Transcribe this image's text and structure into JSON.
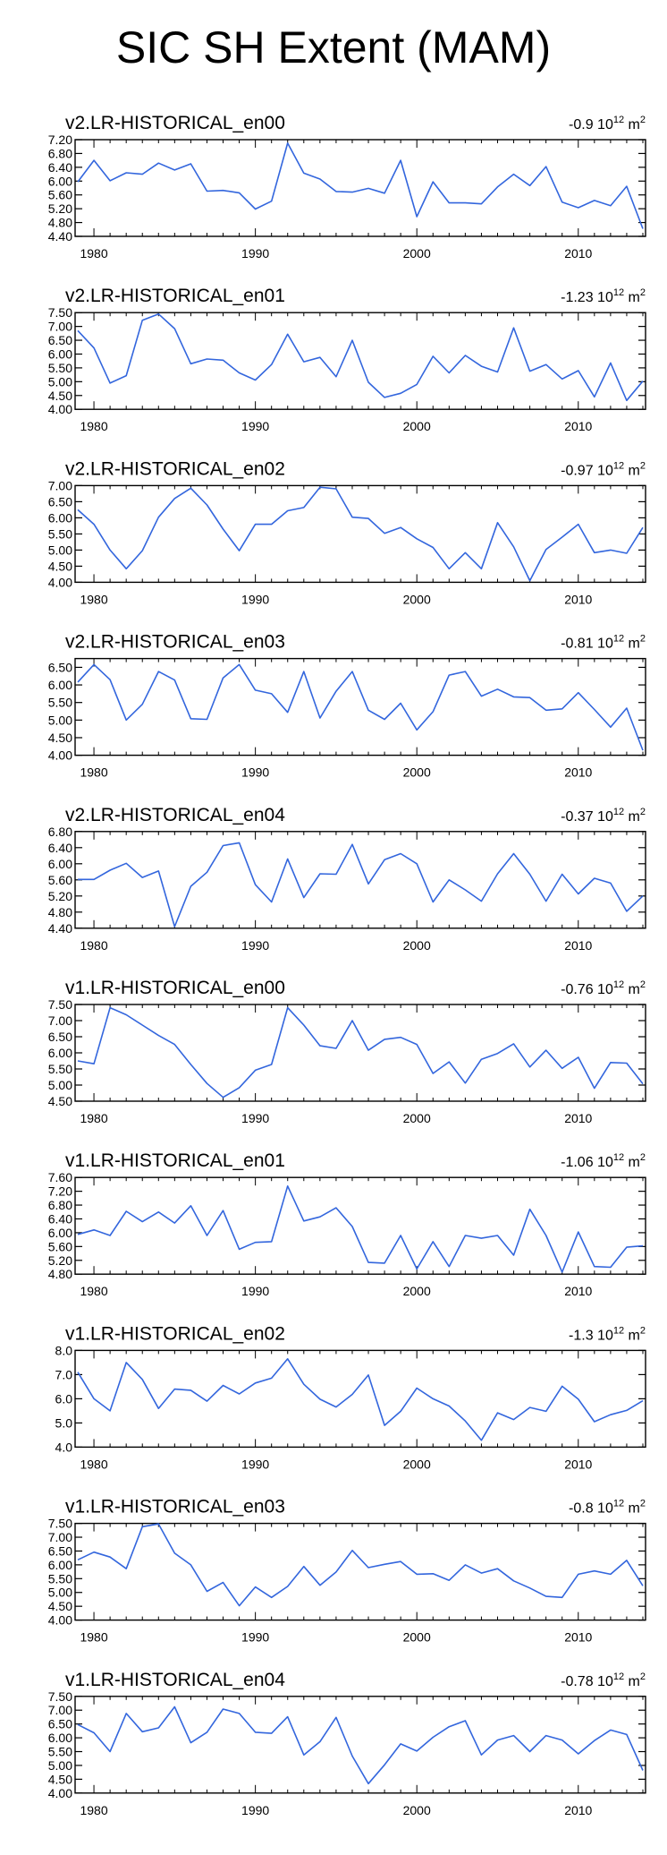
{
  "page_title": "SIC SH Extent (MAM)",
  "unit_base": "10",
  "unit_exp": "12",
  "unit_suffix": "m",
  "unit_suffix_exp": "2",
  "chart_data": [
    {
      "type": "line",
      "title": "v2.LR-HISTORICAL_en00",
      "trend": "-0.9",
      "xlabel": "",
      "ylabel": "",
      "x_range": [
        1979,
        2014
      ],
      "x_ticks": [
        1980,
        1990,
        2000,
        2010
      ],
      "ylim": [
        4.4,
        7.2
      ],
      "y_tick_labels": [
        "7.20",
        "6.80",
        "6.40",
        "6.00",
        "5.60",
        "5.20",
        "4.80",
        "4.40"
      ],
      "line_color": "#3366dd",
      "x": [
        1979,
        1980,
        1981,
        1982,
        1983,
        1984,
        1985,
        1986,
        1987,
        1988,
        1989,
        1990,
        1991,
        1992,
        1993,
        1994,
        1995,
        1996,
        1997,
        1998,
        1999,
        2000,
        2001,
        2002,
        2003,
        2004,
        2005,
        2006,
        2007,
        2008,
        2009,
        2010,
        2011,
        2012,
        2013,
        2014
      ],
      "values": [
        5.98,
        6.6,
        6.01,
        6.24,
        6.2,
        6.52,
        6.32,
        6.5,
        5.71,
        5.73,
        5.66,
        5.19,
        5.42,
        7.1,
        6.23,
        6.06,
        5.7,
        5.68,
        5.79,
        5.65,
        6.6,
        4.97,
        5.98,
        5.37,
        5.37,
        5.34,
        5.83,
        6.2,
        5.87,
        6.42,
        5.39,
        5.23,
        5.44,
        5.29,
        5.85,
        4.62
      ]
    },
    {
      "type": "line",
      "title": "v2.LR-HISTORICAL_en01",
      "trend": "-1.23",
      "xlabel": "",
      "ylabel": "",
      "x_range": [
        1979,
        2014
      ],
      "x_ticks": [
        1980,
        1990,
        2000,
        2010
      ],
      "ylim": [
        4.0,
        7.5
      ],
      "y_tick_labels": [
        "7.50",
        "7.00",
        "6.50",
        "6.00",
        "5.50",
        "5.00",
        "4.50",
        "4.00"
      ],
      "line_color": "#3366dd",
      "x": [
        1979,
        1980,
        1981,
        1982,
        1983,
        1984,
        1985,
        1986,
        1987,
        1988,
        1989,
        1990,
        1991,
        1992,
        1993,
        1994,
        1995,
        1996,
        1997,
        1998,
        1999,
        2000,
        2001,
        2002,
        2003,
        2004,
        2005,
        2006,
        2007,
        2008,
        2009,
        2010,
        2011,
        2012,
        2013,
        2014
      ],
      "values": [
        6.85,
        6.22,
        4.95,
        5.22,
        7.22,
        7.45,
        6.92,
        5.65,
        5.82,
        5.78,
        5.32,
        5.06,
        5.62,
        6.72,
        5.72,
        5.88,
        5.18,
        6.5,
        4.98,
        4.43,
        4.58,
        4.9,
        5.92,
        5.32,
        5.95,
        5.56,
        5.35,
        6.95,
        5.38,
        5.62,
        5.1,
        5.4,
        4.45,
        5.68,
        4.32,
        5.02
      ]
    },
    {
      "type": "line",
      "title": "v2.LR-HISTORICAL_en02",
      "trend": "-0.97",
      "xlabel": "",
      "ylabel": "",
      "x_range": [
        1979,
        2014
      ],
      "x_ticks": [
        1980,
        1990,
        2000,
        2010
      ],
      "ylim": [
        4.0,
        7.0
      ],
      "y_tick_labels": [
        "7.00",
        "6.50",
        "6.00",
        "5.50",
        "5.00",
        "4.50",
        "4.00"
      ],
      "line_color": "#3366dd",
      "x": [
        1979,
        1980,
        1981,
        1982,
        1983,
        1984,
        1985,
        1986,
        1987,
        1988,
        1989,
        1990,
        1991,
        1992,
        1993,
        1994,
        1995,
        1996,
        1997,
        1998,
        1999,
        2000,
        2001,
        2002,
        2003,
        2004,
        2005,
        2006,
        2007,
        2008,
        2009,
        2010,
        2011,
        2012,
        2013,
        2014
      ],
      "values": [
        6.25,
        5.8,
        5.0,
        4.42,
        4.98,
        6.02,
        6.6,
        6.92,
        6.4,
        5.65,
        4.98,
        5.8,
        5.8,
        6.22,
        6.32,
        6.95,
        6.9,
        6.02,
        5.98,
        5.52,
        5.7,
        5.35,
        5.08,
        4.42,
        4.92,
        4.42,
        5.85,
        5.1,
        4.05,
        5.02,
        5.4,
        5.8,
        4.92,
        5.0,
        4.9,
        5.7
      ]
    },
    {
      "type": "line",
      "title": "v2.LR-HISTORICAL_en03",
      "trend": "-0.81",
      "xlabel": "",
      "ylabel": "",
      "x_range": [
        1979,
        2014
      ],
      "x_ticks": [
        1980,
        1990,
        2000,
        2010
      ],
      "ylim": [
        4.0,
        6.75
      ],
      "y_tick_labels": [
        "6.50",
        "6.00",
        "5.50",
        "5.00",
        "4.50",
        "4.00"
      ],
      "line_color": "#3366dd",
      "x": [
        1979,
        1980,
        1981,
        1982,
        1983,
        1984,
        1985,
        1986,
        1987,
        1988,
        1989,
        1990,
        1991,
        1992,
        1993,
        1994,
        1995,
        1996,
        1997,
        1998,
        1999,
        2000,
        2001,
        2002,
        2003,
        2004,
        2005,
        2006,
        2007,
        2008,
        2009,
        2010,
        2011,
        2012,
        2013,
        2014
      ],
      "values": [
        6.08,
        6.58,
        6.15,
        5.0,
        5.45,
        6.38,
        6.14,
        5.04,
        5.02,
        6.2,
        6.58,
        5.85,
        5.75,
        5.22,
        6.38,
        5.06,
        5.82,
        6.38,
        5.28,
        5.02,
        5.48,
        4.72,
        5.24,
        6.28,
        6.38,
        5.68,
        5.88,
        5.66,
        5.64,
        5.28,
        5.32,
        5.78,
        5.3,
        4.8,
        5.34,
        4.14
      ]
    },
    {
      "type": "line",
      "title": "v2.LR-HISTORICAL_en04",
      "trend": "-0.37",
      "xlabel": "",
      "ylabel": "",
      "x_range": [
        1979,
        2014
      ],
      "x_ticks": [
        1980,
        1990,
        2000,
        2010
      ],
      "ylim": [
        4.4,
        6.8
      ],
      "y_tick_labels": [
        "6.80",
        "6.40",
        "6.00",
        "5.60",
        "5.20",
        "4.80",
        "4.40"
      ],
      "line_color": "#3366dd",
      "x": [
        1979,
        1980,
        1981,
        1982,
        1983,
        1984,
        1985,
        1986,
        1987,
        1988,
        1989,
        1990,
        1991,
        1992,
        1993,
        1994,
        1995,
        1996,
        1997,
        1998,
        1999,
        2000,
        2001,
        2002,
        2003,
        2004,
        2005,
        2006,
        2007,
        2008,
        2009,
        2010,
        2011,
        2012,
        2013,
        2014
      ],
      "values": [
        5.61,
        5.61,
        5.84,
        6.01,
        5.66,
        5.82,
        4.44,
        5.44,
        5.79,
        6.45,
        6.52,
        5.48,
        5.05,
        6.12,
        5.16,
        5.75,
        5.74,
        6.48,
        5.5,
        6.1,
        6.25,
        6.0,
        5.05,
        5.6,
        5.35,
        5.07,
        5.75,
        6.25,
        5.74,
        5.07,
        5.74,
        5.25,
        5.64,
        5.52,
        4.82,
        5.2
      ]
    },
    {
      "type": "line",
      "title": "v1.LR-HISTORICAL_en00",
      "trend": "-0.76",
      "xlabel": "",
      "ylabel": "",
      "x_range": [
        1979,
        2014
      ],
      "x_ticks": [
        1980,
        1990,
        2000,
        2010
      ],
      "ylim": [
        4.5,
        7.5
      ],
      "y_tick_labels": [
        "7.50",
        "7.00",
        "6.50",
        "6.00",
        "5.50",
        "5.00",
        "4.50"
      ],
      "line_color": "#3366dd",
      "x": [
        1979,
        1980,
        1981,
        1982,
        1983,
        1984,
        1985,
        1986,
        1987,
        1988,
        1989,
        1990,
        1991,
        1992,
        1993,
        1994,
        1995,
        1996,
        1997,
        1998,
        1999,
        2000,
        2001,
        2002,
        2003,
        2004,
        2005,
        2006,
        2007,
        2008,
        2009,
        2010,
        2011,
        2012,
        2013,
        2014
      ],
      "values": [
        5.75,
        5.66,
        7.4,
        7.18,
        6.86,
        6.54,
        6.26,
        5.64,
        5.05,
        4.62,
        4.92,
        5.46,
        5.64,
        7.4,
        6.86,
        6.22,
        6.14,
        7.0,
        6.08,
        6.42,
        6.48,
        6.26,
        5.36,
        5.72,
        5.06,
        5.8,
        5.98,
        6.28,
        5.56,
        6.08,
        5.52,
        5.86,
        4.9,
        5.7,
        5.68,
        5.04
      ]
    },
    {
      "type": "line",
      "title": "v1.LR-HISTORICAL_en01",
      "trend": "-1.06",
      "xlabel": "",
      "ylabel": "",
      "x_range": [
        1979,
        2014
      ],
      "x_ticks": [
        1980,
        1990,
        2000,
        2010
      ],
      "ylim": [
        4.8,
        7.6
      ],
      "y_tick_labels": [
        "7.60",
        "7.20",
        "6.80",
        "6.40",
        "6.00",
        "5.60",
        "5.20",
        "4.80"
      ],
      "line_color": "#3366dd",
      "x": [
        1979,
        1980,
        1981,
        1982,
        1983,
        1984,
        1985,
        1986,
        1987,
        1988,
        1989,
        1990,
        1991,
        1992,
        1993,
        1994,
        1995,
        1996,
        1997,
        1998,
        1999,
        2000,
        2001,
        2002,
        2003,
        2004,
        2005,
        2006,
        2007,
        2008,
        2009,
        2010,
        2011,
        2012,
        2013,
        2014
      ],
      "values": [
        5.95,
        6.08,
        5.92,
        6.62,
        6.32,
        6.6,
        6.28,
        6.78,
        5.92,
        6.64,
        5.52,
        5.72,
        5.74,
        7.35,
        6.34,
        6.46,
        6.72,
        6.18,
        5.14,
        5.12,
        5.92,
        4.95,
        5.74,
        5.02,
        5.92,
        5.84,
        5.92,
        5.35,
        6.68,
        5.92,
        4.86,
        6.02,
        5.02,
        5.0,
        5.58,
        5.62
      ]
    },
    {
      "type": "line",
      "title": "v1.LR-HISTORICAL_en02",
      "trend": "-1.3",
      "xlabel": "",
      "ylabel": "",
      "x_range": [
        1979,
        2014
      ],
      "x_ticks": [
        1980,
        1990,
        2000,
        2010
      ],
      "ylim": [
        4.0,
        8.0
      ],
      "y_tick_labels": [
        "8.0",
        "7.0",
        "6.0",
        "5.0",
        "4.0"
      ],
      "line_color": "#3366dd",
      "x": [
        1979,
        1980,
        1981,
        1982,
        1983,
        1984,
        1985,
        1986,
        1987,
        1988,
        1989,
        1990,
        1991,
        1992,
        1993,
        1994,
        1995,
        1996,
        1997,
        1998,
        1999,
        2000,
        2001,
        2002,
        2003,
        2004,
        2005,
        2006,
        2007,
        2008,
        2009,
        2010,
        2011,
        2012,
        2013,
        2014
      ],
      "values": [
        7.1,
        6.0,
        5.5,
        7.5,
        6.8,
        5.6,
        6.4,
        6.35,
        5.9,
        6.55,
        6.2,
        6.65,
        6.85,
        7.65,
        6.6,
        5.98,
        5.66,
        6.18,
        6.98,
        4.9,
        5.48,
        6.44,
        6.0,
        5.7,
        5.08,
        4.28,
        5.42,
        5.14,
        5.64,
        5.48,
        6.52,
        5.98,
        5.05,
        5.34,
        5.52,
        5.92
      ]
    },
    {
      "type": "line",
      "title": "v1.LR-HISTORICAL_en03",
      "trend": "-0.8",
      "xlabel": "",
      "ylabel": "",
      "x_range": [
        1979,
        2014
      ],
      "x_ticks": [
        1980,
        1990,
        2000,
        2010
      ],
      "ylim": [
        4.0,
        7.5
      ],
      "y_tick_labels": [
        "7.50",
        "7.00",
        "6.50",
        "6.00",
        "5.50",
        "5.00",
        "4.50",
        "4.00"
      ],
      "line_color": "#3366dd",
      "x": [
        1979,
        1980,
        1981,
        1982,
        1983,
        1984,
        1985,
        1986,
        1987,
        1988,
        1989,
        1990,
        1991,
        1992,
        1993,
        1994,
        1995,
        1996,
        1997,
        1998,
        1999,
        2000,
        2001,
        2002,
        2003,
        2004,
        2005,
        2006,
        2007,
        2008,
        2009,
        2010,
        2011,
        2012,
        2013,
        2014
      ],
      "values": [
        6.18,
        6.46,
        6.28,
        5.86,
        7.38,
        7.48,
        6.42,
        6.0,
        5.04,
        5.36,
        4.52,
        5.2,
        4.82,
        5.22,
        5.94,
        5.26,
        5.74,
        6.52,
        5.9,
        6.02,
        6.12,
        5.66,
        5.68,
        5.44,
        6.0,
        5.7,
        5.86,
        5.42,
        5.16,
        4.86,
        4.82,
        5.66,
        5.78,
        5.66,
        6.16,
        5.24
      ]
    },
    {
      "type": "line",
      "title": "v1.LR-HISTORICAL_en04",
      "trend": "-0.78",
      "xlabel": "",
      "ylabel": "",
      "x_range": [
        1979,
        2014
      ],
      "x_ticks": [
        1980,
        1990,
        2000,
        2010
      ],
      "ylim": [
        4.0,
        7.5
      ],
      "y_tick_labels": [
        "7.50",
        "7.00",
        "6.50",
        "6.00",
        "5.50",
        "5.00",
        "4.50",
        "4.00"
      ],
      "line_color": "#3366dd",
      "x": [
        1979,
        1980,
        1981,
        1982,
        1983,
        1984,
        1985,
        1986,
        1987,
        1988,
        1989,
        1990,
        1991,
        1992,
        1993,
        1994,
        1995,
        1996,
        1997,
        1998,
        1999,
        2000,
        2001,
        2002,
        2003,
        2004,
        2005,
        2006,
        2007,
        2008,
        2009,
        2010,
        2011,
        2012,
        2013,
        2014
      ],
      "values": [
        6.48,
        6.18,
        5.5,
        6.88,
        6.22,
        6.36,
        7.12,
        5.82,
        6.2,
        7.04,
        6.88,
        6.2,
        6.16,
        6.76,
        5.38,
        5.86,
        6.74,
        5.34,
        4.34,
        5.02,
        5.78,
        5.52,
        6.02,
        6.4,
        6.62,
        5.38,
        5.92,
        6.08,
        5.5,
        6.08,
        5.92,
        5.42,
        5.9,
        6.28,
        6.12,
        4.82
      ]
    }
  ]
}
